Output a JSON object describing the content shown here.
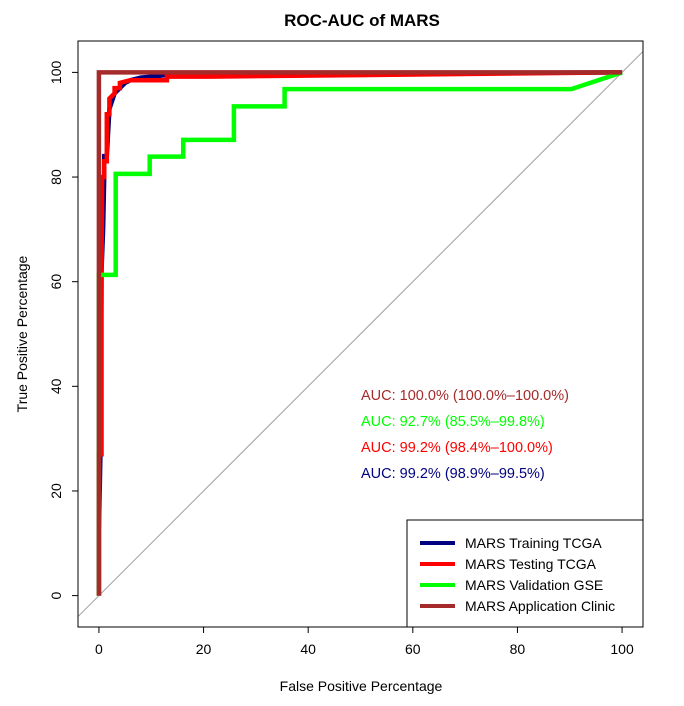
{
  "chart_data": {
    "type": "line",
    "title": "ROC-AUC of MARS",
    "xlabel": "False Positive Percentage",
    "ylabel": "True Positive Percentage",
    "xlim": [
      -4,
      104
    ],
    "ylim": [
      -6,
      106
    ],
    "x_reversed": false,
    "xticks": [
      0,
      20,
      40,
      60,
      80,
      100
    ],
    "yticks": [
      0,
      20,
      40,
      60,
      80,
      100
    ],
    "grid": false,
    "legend_position": "bottom-right",
    "diagonal_reference": true,
    "series": [
      {
        "name": "MARS Training TCGA",
        "color": "#000080",
        "points": [
          [
            0,
            0
          ],
          [
            0,
            12
          ],
          [
            0.3,
            28
          ],
          [
            0.5,
            62
          ],
          [
            0.8,
            70
          ],
          [
            1,
            80
          ],
          [
            1,
            84
          ],
          [
            1.5,
            84
          ],
          [
            2,
            93
          ],
          [
            3,
            96
          ],
          [
            4,
            97
          ],
          [
            5,
            98
          ],
          [
            6,
            98.5
          ],
          [
            8,
            99
          ],
          [
            10,
            99.2
          ],
          [
            13,
            99.5
          ],
          [
            100,
            100
          ]
        ]
      },
      {
        "name": "MARS Testing TCGA",
        "color": "#ff0000",
        "points": [
          [
            0,
            0
          ],
          [
            0,
            27
          ],
          [
            0.5,
            27
          ],
          [
            0.5,
            60
          ],
          [
            0.6,
            80
          ],
          [
            1,
            80
          ],
          [
            1,
            83
          ],
          [
            1.5,
            83
          ],
          [
            1.5,
            92
          ],
          [
            2,
            92
          ],
          [
            2,
            95
          ],
          [
            3,
            96
          ],
          [
            3,
            97
          ],
          [
            4,
            97
          ],
          [
            4,
            98
          ],
          [
            6,
            98.5
          ],
          [
            13,
            98.5
          ],
          [
            13,
            99.2
          ],
          [
            21,
            99.2
          ],
          [
            100,
            100
          ]
        ]
      },
      {
        "name": "MARS Validation GSE",
        "color": "#00ff00",
        "points": [
          [
            0,
            0
          ],
          [
            0,
            61.3
          ],
          [
            3.2,
            61.3
          ],
          [
            3.2,
            80.6
          ],
          [
            9.7,
            80.6
          ],
          [
            9.7,
            83.9
          ],
          [
            16.1,
            83.9
          ],
          [
            16.1,
            87.1
          ],
          [
            25.8,
            87.1
          ],
          [
            25.8,
            93.5
          ],
          [
            35.5,
            93.5
          ],
          [
            35.5,
            96.8
          ],
          [
            90.3,
            96.8
          ],
          [
            100,
            100
          ]
        ]
      },
      {
        "name": "MARS Application Clinic",
        "color": "#a52a2a",
        "points": [
          [
            0,
            0
          ],
          [
            0,
            100
          ],
          [
            100,
            100
          ]
        ]
      }
    ],
    "annotations": [
      {
        "text": "AUC: 100.0% (100.0%–100.0%)",
        "color": "#a52a2a"
      },
      {
        "text": "AUC: 92.7% (85.5%–99.8%)",
        "color": "#00ff00"
      },
      {
        "text": "AUC: 99.2% (98.4%–100.0%)",
        "color": "#ff0000"
      },
      {
        "text": "AUC: 99.2% (98.9%–99.5%)",
        "color": "#000080"
      }
    ]
  }
}
